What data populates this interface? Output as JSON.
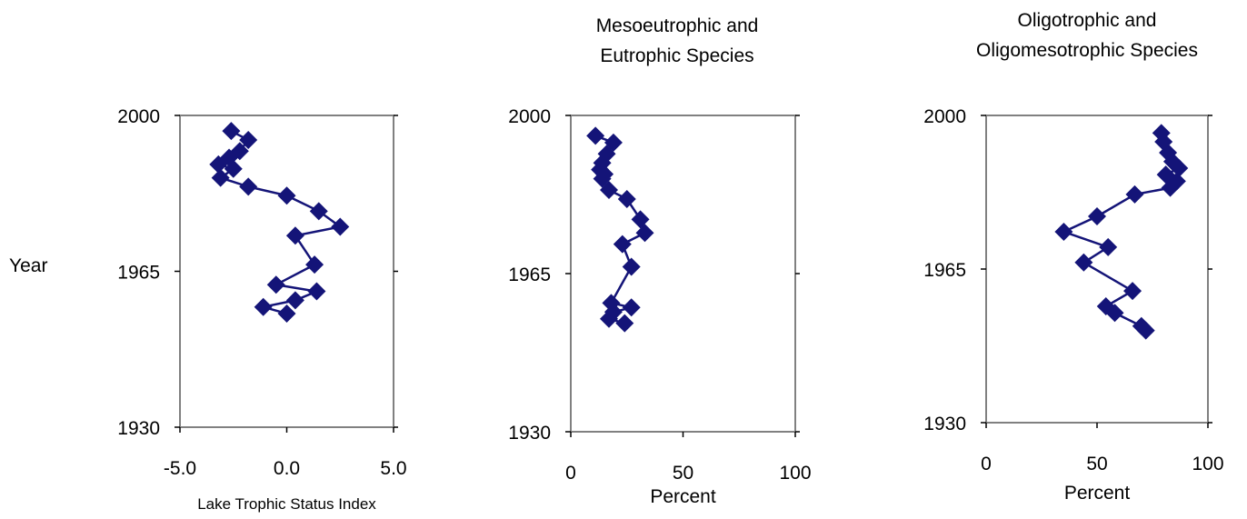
{
  "shared": {
    "y_axis_label": "Year"
  },
  "colors": {
    "series": "#141478",
    "frame": "#808080",
    "background": "#ffffff"
  },
  "chart_data": [
    {
      "type": "line",
      "title": "",
      "xlabel": "Lake Trophic Status Index",
      "ylabel": "Year",
      "xlim": [
        -5,
        5
      ],
      "ylim": [
        1930,
        2000
      ],
      "x_ticks": [
        "-5.0",
        "0.0",
        "5.0"
      ],
      "y_ticks": [
        "2000",
        "1965",
        "1930"
      ],
      "marker": "diamond",
      "series": [
        {
          "x": [
            -2.6,
            -1.8,
            -2.2,
            -2.7,
            -3.2,
            -2.5,
            -3.1,
            -1.8,
            0.0,
            1.5,
            2.5,
            0.4,
            1.3,
            -0.5,
            1.4,
            0.4,
            -1.1,
            0.0
          ],
          "y": [
            1996.5,
            1994.5,
            1992,
            1990.5,
            1989,
            1988,
            1986,
            1984,
            1982,
            1978.5,
            1975,
            1973,
            1966.5,
            1962,
            1960.5,
            1958.5,
            1957,
            1955.5
          ]
        }
      ]
    },
    {
      "type": "line",
      "title": "Mesoeutrophic  and Eutrophic Species",
      "title_lines": [
        "Mesoeutrophic  and",
        "Eutrophic Species"
      ],
      "xlabel": "Percent",
      "ylabel": "Year",
      "xlim": [
        0,
        100
      ],
      "ylim": [
        1930,
        2000
      ],
      "x_ticks": [
        "0",
        "50",
        "100"
      ],
      "y_ticks": [
        "2000",
        "1965",
        "1930"
      ],
      "marker": "diamond",
      "series": [
        {
          "x": [
            11,
            19,
            16,
            14,
            13,
            15,
            14,
            17,
            25,
            31,
            33,
            23,
            27,
            18,
            27,
            19,
            17,
            24
          ],
          "y": [
            1995.5,
            1994,
            1991.5,
            1989.5,
            1988,
            1987,
            1986,
            1983.5,
            1981.5,
            1977,
            1974,
            1971.5,
            1966.5,
            1958.5,
            1957.5,
            1956.5,
            1955,
            1954
          ]
        }
      ]
    },
    {
      "type": "line",
      "title": "Oligotrophic and Oligomesotrophic Species",
      "title_lines": [
        "Oligotrophic and",
        "Oligomesotrophic Species"
      ],
      "xlabel": "Percent",
      "ylabel": "Year",
      "xlim": [
        0,
        100
      ],
      "ylim": [
        1930,
        2000
      ],
      "x_ticks": [
        "0",
        "50",
        "100"
      ],
      "y_ticks": [
        "2000",
        "1965",
        "1930"
      ],
      "marker": "diamond",
      "series": [
        {
          "x": [
            79,
            80,
            82,
            84,
            87,
            81,
            86,
            83,
            67,
            50,
            35,
            55,
            44,
            66,
            54,
            58,
            70,
            72
          ],
          "y": [
            1996,
            1994,
            1991.5,
            1989.5,
            1988,
            1986.5,
            1985,
            1983.5,
            1982,
            1977,
            1973.5,
            1970,
            1966.5,
            1960,
            1956.5,
            1955,
            1952,
            1951
          ]
        }
      ]
    }
  ]
}
